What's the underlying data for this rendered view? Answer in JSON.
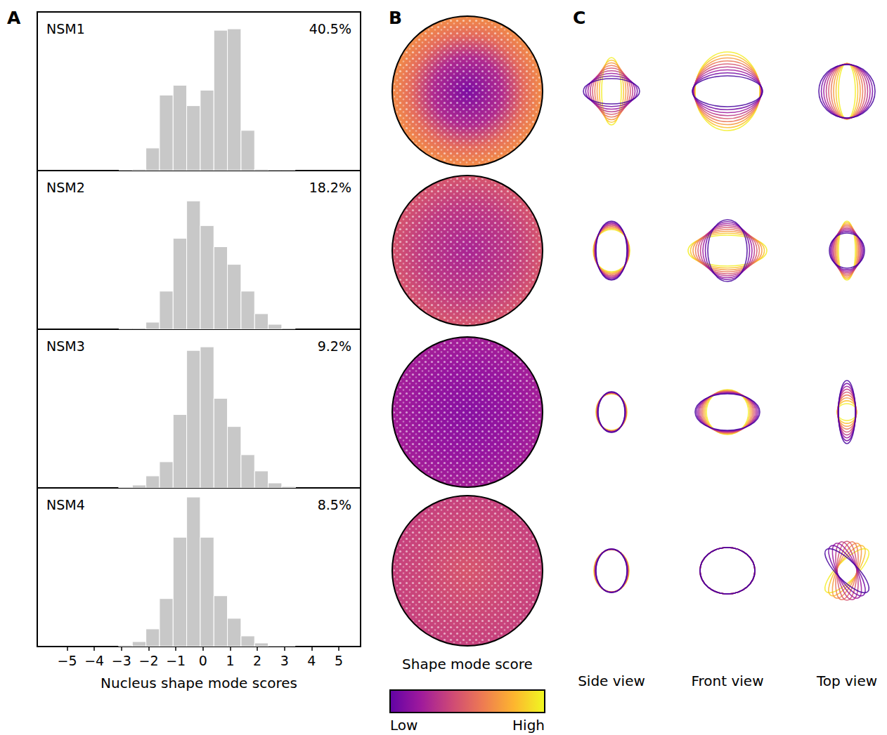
{
  "chart_data": [
    {
      "type": "histogram",
      "title": "NSM1",
      "annotation": "40.5%",
      "bins": [
        -3.1,
        -2.6,
        -2.1,
        -1.6,
        -1.1,
        -0.6,
        -0.1,
        0.4,
        0.9,
        1.4,
        1.9,
        2.4,
        2.9,
        3.4
      ],
      "counts": [
        0,
        2,
        32,
        107,
        121,
        92,
        114,
        199,
        201,
        57,
        2,
        0,
        0
      ],
      "color": "#c8c8c8",
      "xlim": [
        -6.1,
        5.8
      ],
      "ylim": [
        0,
        225
      ],
      "tick_labels": false
    },
    {
      "type": "histogram",
      "title": "NSM2",
      "annotation": "18.2%",
      "bins": [
        -3.1,
        -2.6,
        -2.1,
        -1.6,
        -1.1,
        -0.6,
        -0.1,
        0.4,
        0.9,
        1.4,
        1.9,
        2.4,
        2.9,
        3.4
      ],
      "counts": [
        0,
        0,
        10,
        54,
        129,
        182,
        147,
        117,
        92,
        54,
        22,
        7,
        0
      ],
      "color": "#c8c8c8",
      "xlim": [
        -6.1,
        5.8
      ],
      "ylim": [
        0,
        225
      ],
      "tick_labels": false
    },
    {
      "type": "histogram",
      "title": "NSM3",
      "annotation": "9.2%",
      "bins": [
        -3.1,
        -2.6,
        -2.1,
        -1.6,
        -1.1,
        -0.6,
        -0.1,
        0.4,
        0.9,
        1.4,
        1.9,
        2.4,
        2.9,
        3.4
      ],
      "counts": [
        1,
        4,
        17,
        37,
        104,
        195,
        200,
        127,
        87,
        47,
        24,
        7,
        2
      ],
      "color": "#c8c8c8",
      "xlim": [
        -6.1,
        5.8
      ],
      "ylim": [
        0,
        225
      ],
      "tick_labels": false
    },
    {
      "type": "histogram",
      "title": "NSM4",
      "annotation": "8.5%",
      "bins": [
        -3.1,
        -2.6,
        -2.1,
        -1.6,
        -1.1,
        -0.6,
        -0.1,
        0.4,
        0.9,
        1.4,
        1.9,
        2.4,
        2.9,
        3.4
      ],
      "counts": [
        2,
        7,
        25,
        68,
        155,
        212,
        155,
        72,
        40,
        15,
        5,
        0,
        0
      ],
      "color": "#c8c8c8",
      "xlim": [
        -6.1,
        5.8
      ],
      "ylim": [
        0,
        225
      ],
      "tick_labels": "x",
      "xlabel": "Nucleus shape mode scores",
      "xticks": [
        {
          "value": -5,
          "label": "−5"
        },
        {
          "value": -4,
          "label": "−4"
        },
        {
          "value": -3,
          "label": "−3"
        },
        {
          "value": -2,
          "label": "−2"
        },
        {
          "value": -1,
          "label": "−1"
        },
        0,
        1,
        2,
        3,
        4,
        5
      ]
    }
  ],
  "panel_labels": [
    "A",
    "B",
    "C"
  ],
  "colorbar": {
    "title": "Shape mode score",
    "low_label": "Low",
    "high_label": "High"
  },
  "view_labels": [
    "Side view",
    "Front view",
    "Top view"
  ]
}
